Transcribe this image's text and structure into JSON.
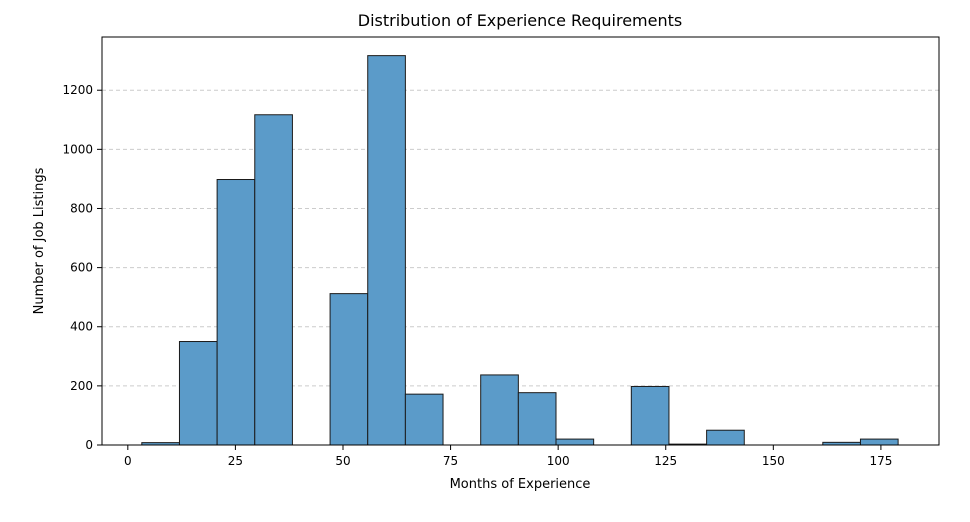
{
  "chart_data": {
    "type": "bar",
    "title": "Distribution of Experience Requirements",
    "xlabel": "Months of Experience",
    "ylabel": "Number of Job Listings",
    "xlim": [
      -6,
      188.5
    ],
    "ylim": [
      0,
      1380
    ],
    "xticks": [
      0,
      25,
      50,
      75,
      100,
      125,
      150,
      175
    ],
    "yticks": [
      0,
      200,
      400,
      600,
      800,
      1000,
      1200
    ],
    "grid": {
      "axis": "y",
      "style": "dashed"
    },
    "bar_color": "#5b9bc9",
    "edge_color": "#1a1a1a",
    "bins": [
      {
        "x0": 3.25,
        "x1": 12.0,
        "value": 8
      },
      {
        "x0": 12.0,
        "x1": 20.75,
        "value": 350
      },
      {
        "x0": 20.75,
        "x1": 29.5,
        "value": 898
      },
      {
        "x0": 29.5,
        "x1": 38.25,
        "value": 1117
      },
      {
        "x0": 47.0,
        "x1": 55.75,
        "value": 512
      },
      {
        "x0": 55.75,
        "x1": 64.5,
        "value": 1317
      },
      {
        "x0": 64.5,
        "x1": 73.25,
        "value": 172
      },
      {
        "x0": 82.0,
        "x1": 90.75,
        "value": 237
      },
      {
        "x0": 90.75,
        "x1": 99.5,
        "value": 177
      },
      {
        "x0": 99.5,
        "x1": 108.25,
        "value": 20
      },
      {
        "x0": 117.0,
        "x1": 125.75,
        "value": 198
      },
      {
        "x0": 125.75,
        "x1": 134.5,
        "value": 3
      },
      {
        "x0": 134.5,
        "x1": 143.25,
        "value": 50
      },
      {
        "x0": 161.5,
        "x1": 170.25,
        "value": 9
      },
      {
        "x0": 170.25,
        "x1": 179.0,
        "value": 20
      }
    ]
  }
}
